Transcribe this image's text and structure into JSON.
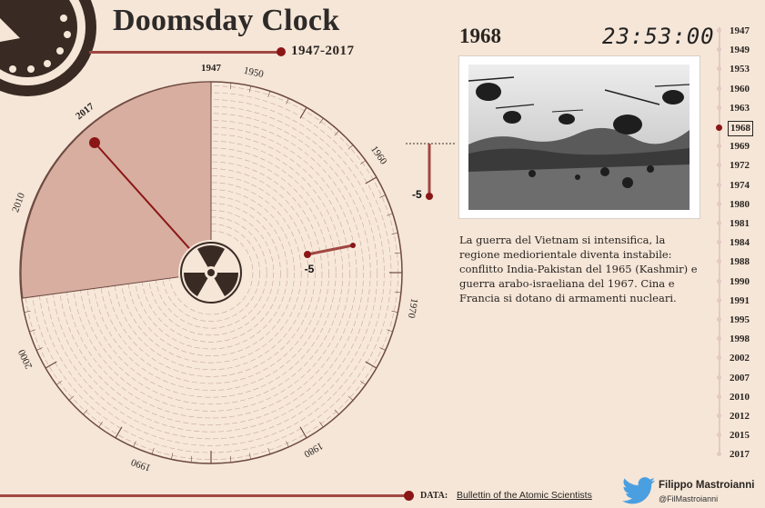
{
  "header": {
    "title": "Doomsday Clock",
    "range": "1947-2017"
  },
  "selected": {
    "year": "1968",
    "time": "23:53:00",
    "change": "-5",
    "description": "La guerra del Vietnam si intensifica, la regione mediorientale diventa instabile: conflitto India-Pakistan del 1965 (Kashmir) e guerra arabo-israeliana del 1967. Cina e Francia si dotano di armamenti nucleari."
  },
  "clock": {
    "year_labels": [
      "1947",
      "1950",
      "1960",
      "1970",
      "1980",
      "1990",
      "2000",
      "2010",
      "2017"
    ],
    "center_icon": "radiation-icon",
    "change_label": "-5"
  },
  "timeline": {
    "years": [
      "1947",
      "1949",
      "1953",
      "1960",
      "1963",
      "1968",
      "1969",
      "1972",
      "1974",
      "1980",
      "1981",
      "1984",
      "1988",
      "1990",
      "1991",
      "1995",
      "1998",
      "2002",
      "2007",
      "2010",
      "2012",
      "2015",
      "2017"
    ],
    "active": "1968"
  },
  "footer": {
    "data_label": "DATA:",
    "data_source": "Bullettin of the Atomic Scientists",
    "author_name": "Filippo Mastroianni",
    "author_handle": "@FilMastroianni"
  },
  "colors": {
    "background": "#f5e6d8",
    "accent": "#8b1616",
    "sector": "#d7aea0",
    "rail": "#e3c9c2"
  }
}
